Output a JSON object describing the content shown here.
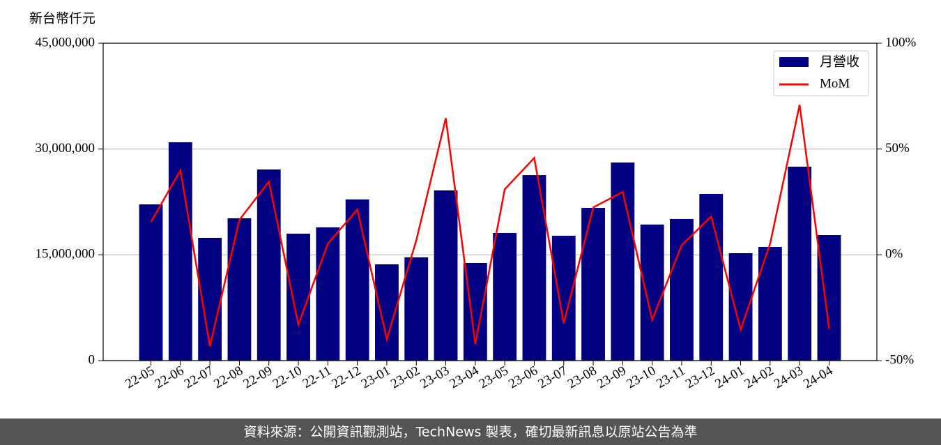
{
  "chart_data": {
    "type": "bar_line",
    "y_label": "新台幣仟元",
    "categories": [
      "22-05",
      "22-06",
      "22-07",
      "22-08",
      "22-09",
      "22-10",
      "22-11",
      "22-12",
      "23-01",
      "23-02",
      "23-03",
      "23-04",
      "23-05",
      "23-06",
      "23-07",
      "23-08",
      "23-09",
      "23-10",
      "23-11",
      "23-12",
      "24-01",
      "24-02",
      "24-03",
      "24-04"
    ],
    "series": [
      {
        "name": "月營收",
        "type": "bar",
        "color": "#000080",
        "values": [
          22150000,
          30960000,
          17410000,
          20180000,
          27100000,
          18000000,
          18890000,
          22850000,
          13650000,
          14640000,
          24130000,
          13850000,
          18100000,
          26300000,
          17700000,
          21660000,
          28090000,
          19290000,
          20080000,
          23640000,
          15230000,
          16120000,
          27500000,
          17800000
        ]
      },
      {
        "name": "MoM",
        "type": "line",
        "axis": "y2",
        "color": "#ff0000",
        "values": [
          15.5,
          39.9,
          -43.2,
          16.5,
          34.6,
          -33.0,
          5.3,
          21.4,
          -39.9,
          6.9,
          64.6,
          -42.2,
          31.0,
          45.8,
          -32.3,
          22.4,
          29.7,
          -30.7,
          4.6,
          18.1,
          -35.3,
          5.3,
          70.9,
          -34.9
        ]
      }
    ],
    "ylim": [
      0,
      45000000
    ],
    "yticks": [
      0,
      {
        "value": 15000000,
        "label": "15,000,000"
      },
      {
        "value": 30000000,
        "label": "30,000,000"
      },
      {
        "value": 45000000,
        "label": "45,000,000"
      }
    ],
    "y2lim": [
      -50,
      100
    ],
    "y2ticks": [
      {
        "value": -50,
        "label": "-50%"
      },
      {
        "value": 0,
        "label": "0%"
      },
      {
        "value": 50,
        "label": "50%"
      },
      {
        "value": 100,
        "label": "100%"
      }
    ],
    "grid": true,
    "legend": "upper right",
    "footer": "資料來源：公開資訊觀測站，TechNews 製表，確切最新訊息以原站公告為準"
  }
}
